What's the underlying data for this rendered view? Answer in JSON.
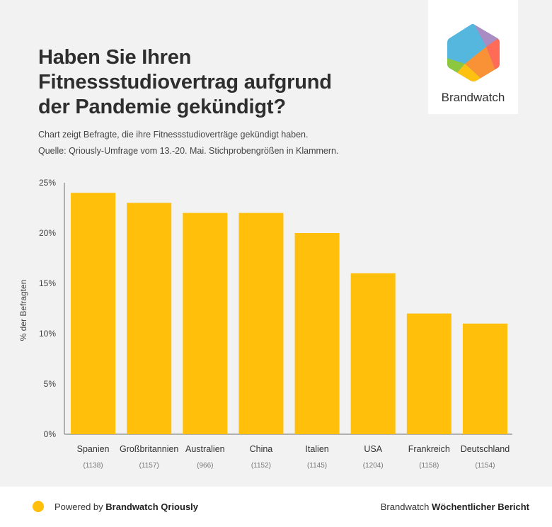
{
  "header": {
    "title_lines": [
      "Haben Sie Ihren",
      "Fitnessstudiovertrag aufgrund",
      "der Pandemie gekündigt?"
    ],
    "subtitle_1": "Chart zeigt Befragte, die ihre Fitnessstudioverträge gekündigt haben.",
    "subtitle_2": "Quelle: Qriously-Umfrage vom 13.-20. Mai. Stichprobengrößen in Klammern."
  },
  "logo": {
    "name": "Brandwatch",
    "icon": "brandwatch-hexagon-logo"
  },
  "footer": {
    "left_prefix": "Powered by ",
    "left_bold": "Brandwatch Qriously",
    "right_prefix": "Brandwatch ",
    "right_bold": "Wöchentlicher Bericht"
  },
  "chart_data": {
    "type": "bar",
    "title": "Haben Sie Ihren Fitnessstudiovertrag aufgrund der Pandemie gekündigt?",
    "categories": [
      "Spanien",
      "Großbritannien",
      "Australien",
      "China",
      "Italien",
      "USA",
      "Frankreich",
      "Deutschland"
    ],
    "sample_sizes": [
      "(1138)",
      "(1157)",
      "(966)",
      "(1152)",
      "(1145)",
      "(1204)",
      "(1158)",
      "(1154)"
    ],
    "values": [
      24,
      23,
      22,
      22,
      20,
      16,
      12,
      11
    ],
    "unit": "%",
    "xlabel": "",
    "ylabel": "% der Befragten",
    "ylim": [
      0,
      25
    ],
    "yticks": [
      0,
      5,
      10,
      15,
      20,
      25
    ],
    "ytick_labels": [
      "0%",
      "5%",
      "10%",
      "15%",
      "20%",
      "25%"
    ],
    "bar_color": "#ffbf0b",
    "grid": false,
    "legend": "none"
  }
}
